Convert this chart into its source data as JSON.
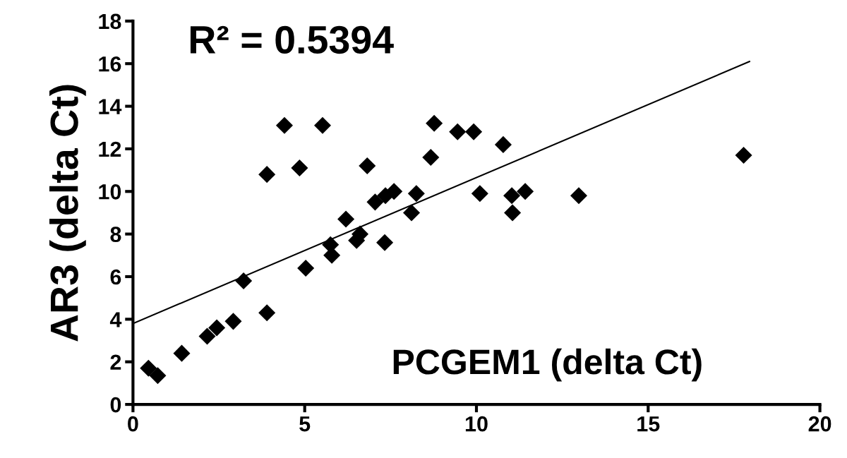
{
  "chart_data": {
    "type": "scatter",
    "xlabel": "PCGEM1 (delta Ct)",
    "ylabel": "AR3 (delta Ct)",
    "annotations": [
      "R² = 0.5394"
    ],
    "xlim": [
      0,
      20
    ],
    "xticks": [
      0,
      5,
      10,
      15,
      20
    ],
    "ylim": [
      0,
      18
    ],
    "yticks": [
      0,
      2,
      4,
      6,
      8,
      10,
      12,
      14,
      16,
      18
    ],
    "grid": false,
    "legend": false,
    "series": [
      {
        "marker": "diamond",
        "color": "#000000",
        "x": [
          0.45,
          0.72,
          1.42,
          2.16,
          2.44,
          2.92,
          3.22,
          3.9,
          3.9,
          4.41,
          5.52,
          4.85,
          6.82,
          5.03,
          5.75,
          5.79,
          6.2,
          6.61,
          6.51,
          7.33,
          7.05,
          7.6,
          7.35,
          8.25,
          8.11,
          8.77,
          9.45,
          9.92,
          10.78,
          8.67,
          10.1,
          11.03,
          11.42,
          11.05,
          12.98,
          17.78
        ],
        "values": [
          1.7,
          1.35,
          2.4,
          3.2,
          3.6,
          3.9,
          5.8,
          4.3,
          10.8,
          13.1,
          13.1,
          11.1,
          11.2,
          6.4,
          7.5,
          7.0,
          8.7,
          8.0,
          7.7,
          7.6,
          9.5,
          10.0,
          9.8,
          9.9,
          9.0,
          13.2,
          12.8,
          12.8,
          12.2,
          11.6,
          9.9,
          9.8,
          10.0,
          9.0,
          9.8,
          11.7
        ]
      },
      {
        "type": "line",
        "marker": "none",
        "color": "#000000",
        "x": [
          0,
          17.95
        ],
        "values": [
          3.8,
          16.1
        ]
      }
    ]
  }
}
